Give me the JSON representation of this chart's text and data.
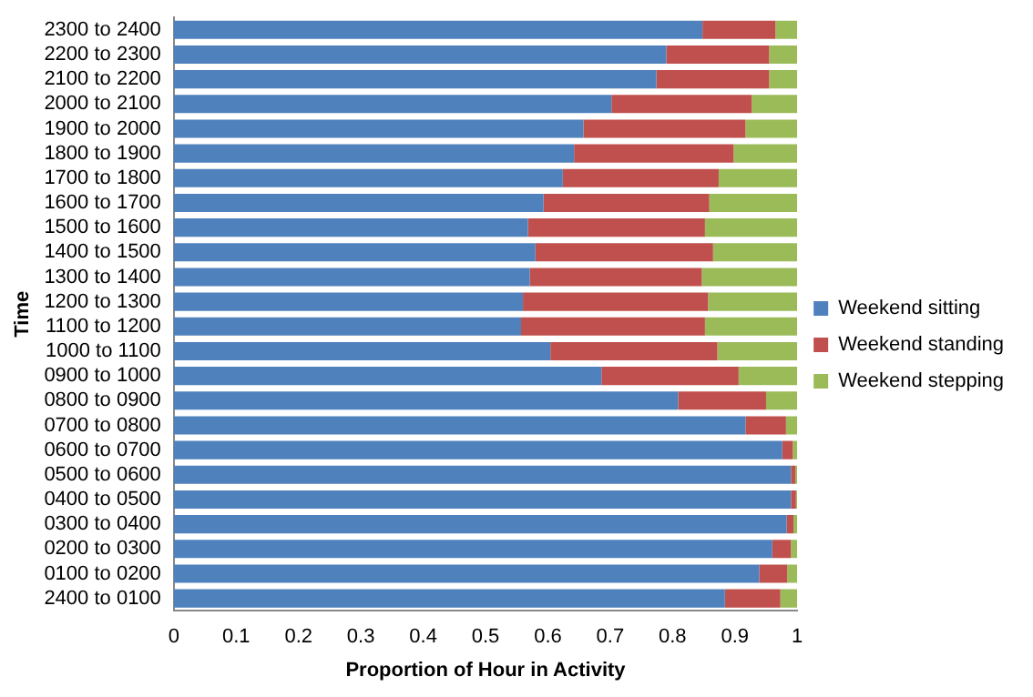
{
  "chart_data": {
    "type": "bar",
    "orientation": "horizontal",
    "stacked": true,
    "xlabel": "Proportion of Hour in Activity",
    "ylabel": "Time",
    "categories": [
      "2300 to 2400",
      "2200 to 2300",
      "2100 to 2200",
      "2000 to 2100",
      "1900 to 2000",
      "1800 to 1900",
      "1700 to 1800",
      "1600 to 1700",
      "1500 to 1600",
      "1400 to 1500",
      "1300 to 1400",
      "1200 to 1300",
      "1100 to 1200",
      "1000 to 1100",
      "0900 to 1000",
      "0800 to 0900",
      "0700 to 0800",
      "0600 to 0700",
      "0500 to 0600",
      "0400 to 0500",
      "0300 to 0400",
      "0200 to 0300",
      "0100 to 0200",
      "2400 to 0100"
    ],
    "series": [
      {
        "name": "Weekend sitting",
        "color": "#4f81bd",
        "values": [
          0.848,
          0.79,
          0.774,
          0.702,
          0.657,
          0.642,
          0.624,
          0.593,
          0.568,
          0.58,
          0.571,
          0.56,
          0.557,
          0.604,
          0.686,
          0.809,
          0.917,
          0.976,
          0.99,
          0.99,
          0.983,
          0.96,
          0.939,
          0.884
        ]
      },
      {
        "name": "Weekend standing",
        "color": "#c0504d",
        "values": [
          0.117,
          0.165,
          0.181,
          0.225,
          0.26,
          0.256,
          0.25,
          0.266,
          0.284,
          0.285,
          0.276,
          0.297,
          0.295,
          0.268,
          0.22,
          0.141,
          0.065,
          0.017,
          0.007,
          0.008,
          0.011,
          0.03,
          0.045,
          0.089
        ]
      },
      {
        "name": "Weekend stepping",
        "color": "#9bbb59",
        "values": [
          0.035,
          0.045,
          0.045,
          0.073,
          0.083,
          0.102,
          0.126,
          0.141,
          0.148,
          0.135,
          0.153,
          0.143,
          0.148,
          0.128,
          0.094,
          0.05,
          0.018,
          0.007,
          0.003,
          0.002,
          0.006,
          0.01,
          0.016,
          0.027
        ]
      }
    ],
    "xlim": [
      0,
      1
    ],
    "xticks": [
      0,
      0.1,
      0.2,
      0.3,
      0.4,
      0.5,
      0.6,
      0.7,
      0.8,
      0.9,
      1
    ],
    "grid": false,
    "legend": "right"
  }
}
